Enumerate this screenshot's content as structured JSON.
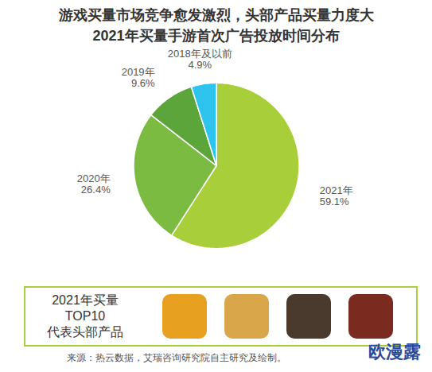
{
  "chart_data": {
    "type": "pie",
    "title": "游戏买量市场竞争愈发激烈，头部产品买量力度大",
    "subtitle": "2021年买量手游首次广告投放时间分布",
    "categories": [
      "2021年",
      "2020年",
      "2019年",
      "2018年及以前"
    ],
    "values": [
      59.1,
      26.4,
      9.6,
      4.9
    ],
    "value_labels": [
      "59.1%",
      "26.4%",
      "9.6%",
      "4.9%"
    ],
    "colors": [
      "#a8cf3a",
      "#7cbb42",
      "#5ba53a",
      "#2ec4ee"
    ],
    "data_labels": true,
    "annotations": {
      "box_text": [
        "2021年买量",
        "TOP10",
        "代表头部产品"
      ],
      "source": "来源：热云数据，艾瑞咨询研究院自主研究及绘制。",
      "watermark": "欧漫露"
    }
  }
}
